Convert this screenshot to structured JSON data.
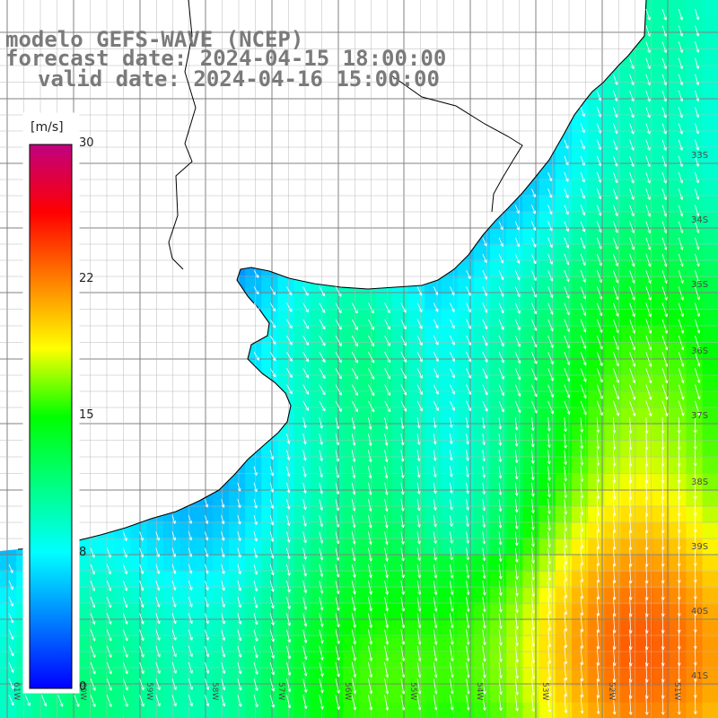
{
  "header": {
    "model": "modelo GEFS-WAVE (NCEP)",
    "forecast": "forecast date: 2024-04-15 18:00:00",
    "valid": "valid date: 2024-04-16 15:00:00"
  },
  "colorbar": {
    "unit": "[m/s]",
    "ticks": [
      "30",
      "22",
      "15",
      "8",
      "0"
    ],
    "tick_values": [
      30,
      22,
      15,
      8,
      0
    ],
    "min": 0,
    "max": 30,
    "colors": [
      "#0000ff",
      "#0080ff",
      "#00ffff",
      "#00ff80",
      "#00ff00",
      "#ffff00",
      "#ff8000",
      "#ff0000",
      "#c00080"
    ]
  },
  "map": {
    "lat_labels": [
      "33S",
      "34S",
      "35S",
      "36S",
      "37S",
      "38S",
      "39S",
      "40S",
      "41S"
    ],
    "lon_labels": [
      "61W",
      "60W",
      "59W",
      "58W",
      "57W",
      "56W",
      "55W",
      "54W",
      "53W",
      "52W",
      "51W"
    ],
    "land_color": "#ffffff",
    "grid_color": "#808080",
    "arrow_color": "#ffffff"
  }
}
